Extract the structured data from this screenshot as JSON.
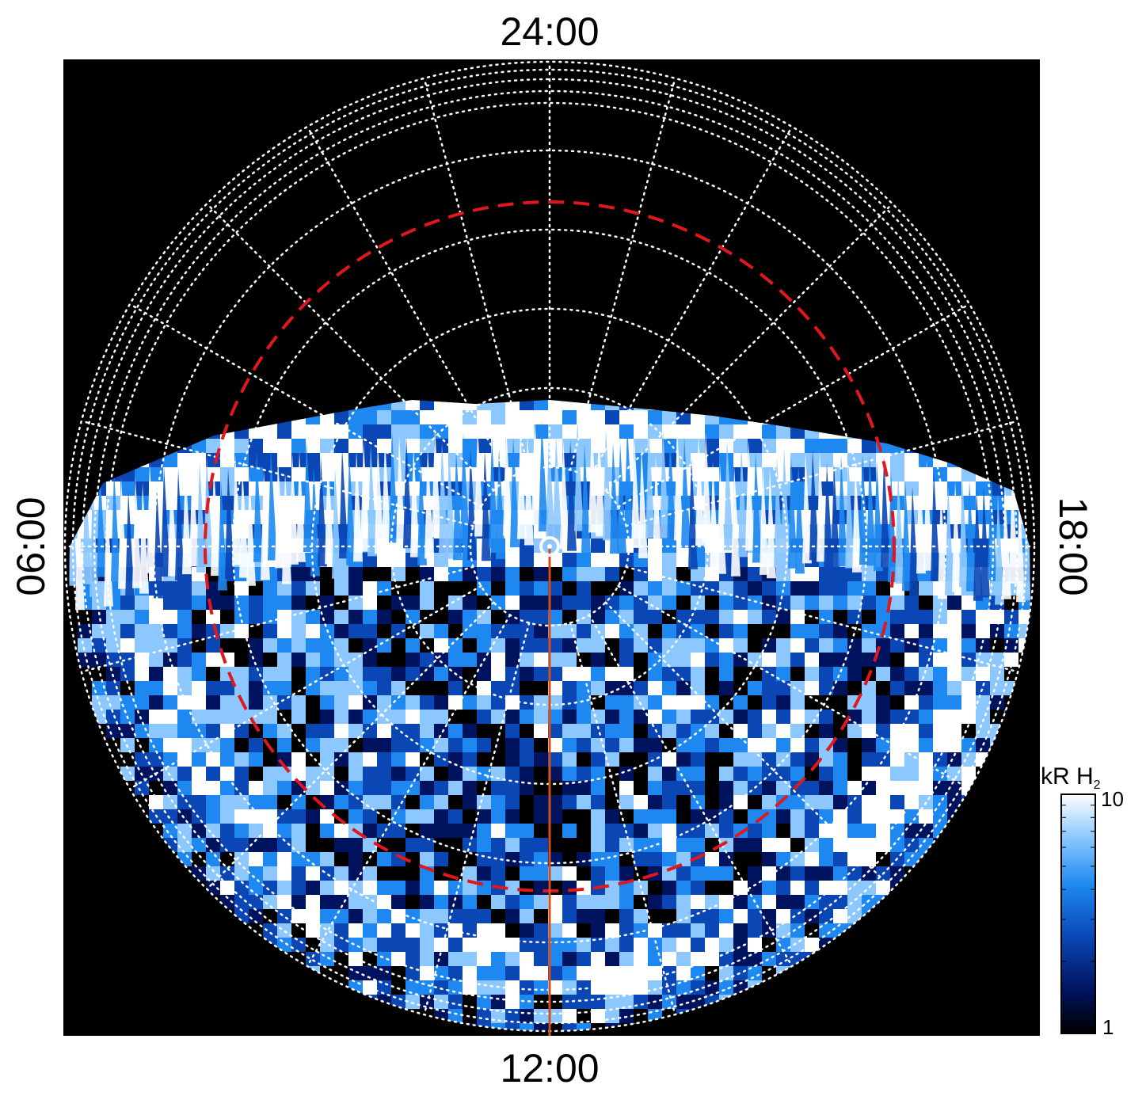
{
  "figure": {
    "local_time_labels": {
      "top": "24:00",
      "bottom": "12:00",
      "left": "06:00",
      "right": "18:00"
    },
    "colorbar": {
      "title": "kR H",
      "title_subscript": "2",
      "tick_max": "10",
      "tick_min": "1",
      "colors": [
        "#000000",
        "#00135e",
        "#0a46b4",
        "#1e88f0",
        "#8cc8ff",
        "#ffffff"
      ]
    },
    "colors": {
      "background": "#000000",
      "grid": "#ffffff",
      "reference_circle": "#e0181c",
      "meridian_line": "#d2501e"
    }
  }
}
